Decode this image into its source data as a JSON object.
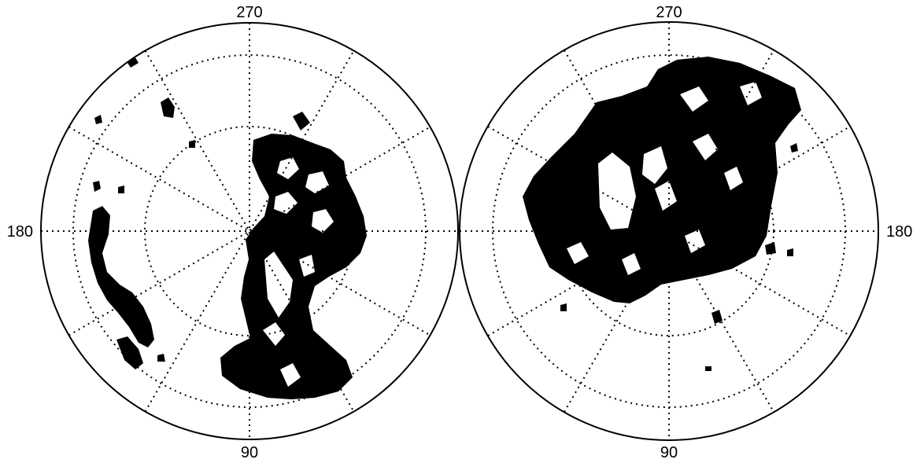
{
  "maps": [
    {
      "id": "left",
      "labels": {
        "top": "270",
        "bottom": "90",
        "side": "180"
      },
      "side_label_position": "left"
    },
    {
      "id": "right",
      "labels": {
        "top": "270",
        "bottom": "90",
        "side": "180"
      },
      "side_label_position": "right"
    }
  ],
  "colors": {
    "fill": "#000000",
    "background": "#ffffff",
    "grid": "#000000"
  },
  "grid": {
    "style": "dotted",
    "meridian_spacing_deg": 30,
    "circles": 2
  }
}
